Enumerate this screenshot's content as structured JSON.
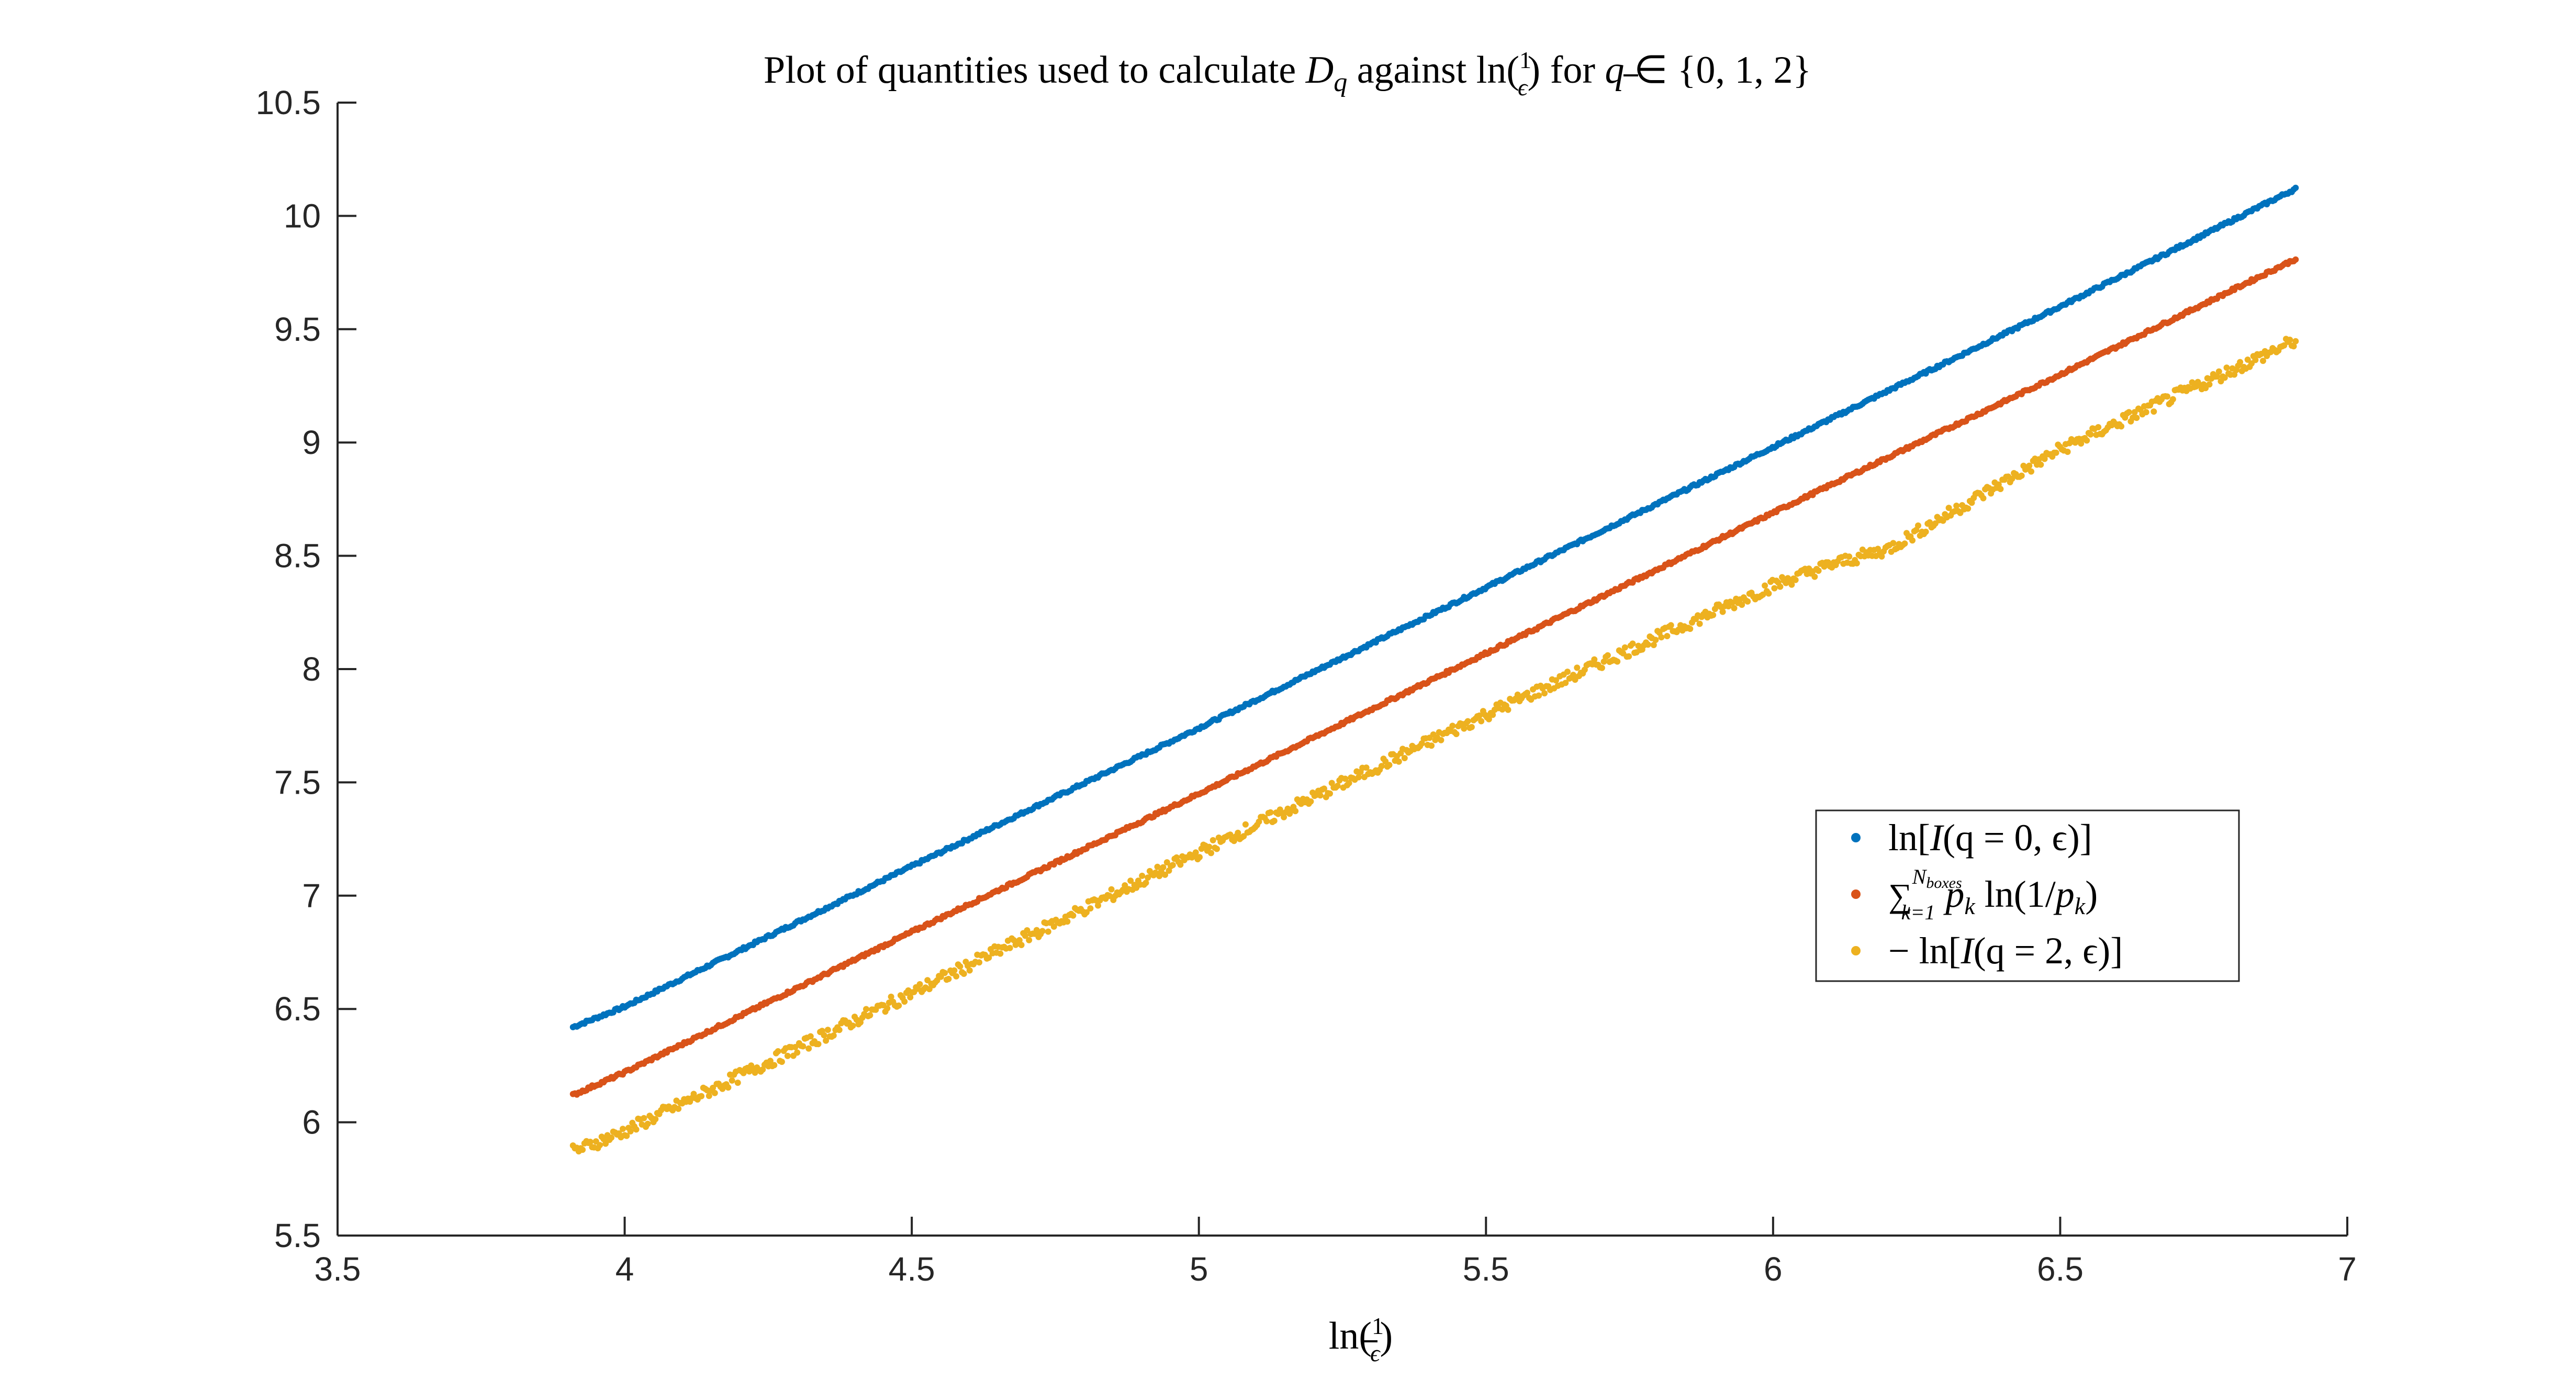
{
  "chart_data": {
    "type": "scatter",
    "title": {
      "prefix": "Plot of quantities used to calculate ",
      "D": "D",
      "D_sub": "q",
      "mid": " against ln(",
      "frac_num": "1",
      "frac_den": "ϵ",
      "suffix_1": ") for ",
      "q": "q",
      "suffix_2": " ∈ {0, 1, 2}"
    },
    "xlabel": {
      "prefix": "ln(",
      "frac_num": "1",
      "frac_den": "ϵ",
      "suffix": ")"
    },
    "ylabel": "",
    "xlim": [
      3.5,
      7
    ],
    "ylim": [
      5.5,
      10.5
    ],
    "x_ticks": [
      3.5,
      4,
      4.5,
      5,
      5.5,
      6,
      6.5,
      7
    ],
    "x_tick_labels": [
      "3.5",
      "4",
      "4.5",
      "5",
      "5.5",
      "6",
      "6.5",
      "7"
    ],
    "y_ticks": [
      5.5,
      6,
      6.5,
      7,
      7.5,
      8,
      8.5,
      9,
      9.5,
      10,
      10.5
    ],
    "y_tick_labels": [
      "5.5",
      "6",
      "6.5",
      "7",
      "7.5",
      "8",
      "8.5",
      "9",
      "9.5",
      "10",
      "10.5"
    ],
    "grid": false,
    "legend_position": "right-middle",
    "x_range_of_points": [
      3.91,
      6.91
    ],
    "series": [
      {
        "name": "ln[I(q = 0, ϵ)]",
        "color": "#0072BD",
        "x": [
          3.91,
          4.0,
          4.5,
          5.0,
          5.5,
          6.0,
          6.5,
          6.91
        ],
        "values": [
          6.42,
          6.51,
          7.13,
          7.74,
          8.36,
          8.98,
          9.6,
          10.12
        ]
      },
      {
        "name": "∑ p_k ln(1/p_k)",
        "color": "#D95319",
        "x": [
          3.91,
          4.0,
          4.5,
          5.0,
          5.5,
          6.0,
          6.5,
          6.91
        ],
        "values": [
          6.12,
          6.22,
          6.84,
          7.45,
          8.07,
          8.69,
          9.3,
          9.81
        ]
      },
      {
        "name": "− ln[I(q = 2, ϵ)]",
        "color": "#EDB120",
        "x": [
          3.91,
          4.0,
          4.5,
          5.0,
          5.5,
          6.0,
          6.1,
          6.2,
          6.5,
          6.91
        ],
        "values": [
          5.87,
          5.96,
          6.57,
          7.19,
          7.8,
          8.37,
          8.46,
          8.53,
          8.97,
          9.45
        ]
      }
    ],
    "legend": {
      "entry_1": {
        "prefix": "ln[",
        "I": "I",
        "rest": "(q = 0, ϵ)]"
      },
      "entry_2": {
        "sum": "∑",
        "sup": "N",
        "sup_sub": "boxes",
        "sub": "k=1",
        "p": "p",
        "p_sub": "k",
        "mid": " ln(1/",
        "p2": "p",
        "p2_sub": "k",
        "end": ")"
      },
      "entry_3": {
        "prefix": "− ln[",
        "I": "I",
        "rest": "(q = 2, ϵ)]"
      }
    }
  }
}
